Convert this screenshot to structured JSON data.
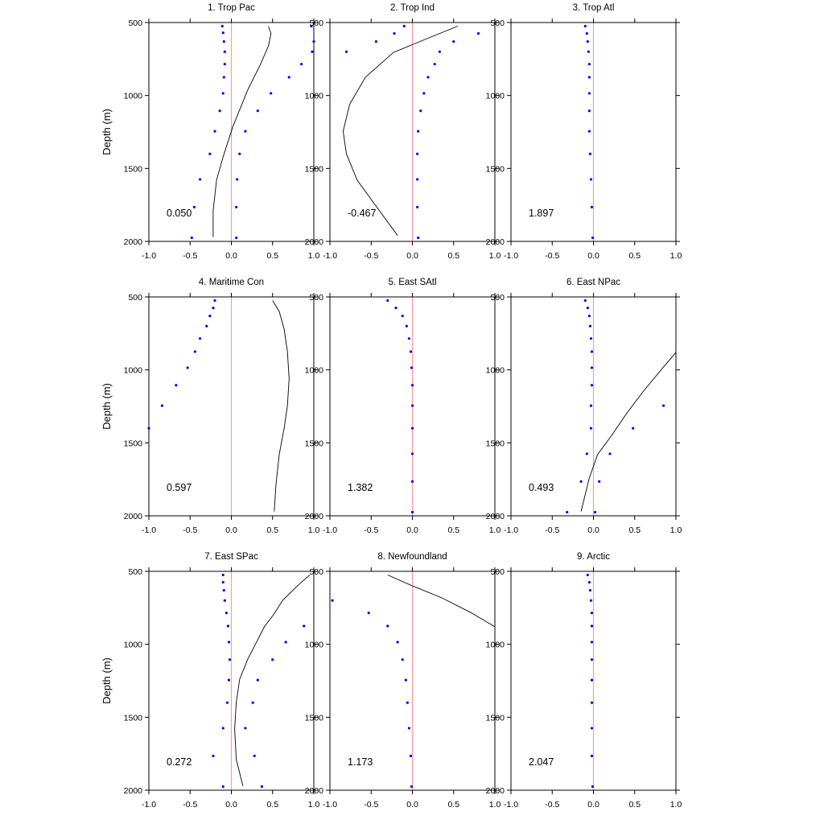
{
  "chart_data": {
    "type": "scatter",
    "ylabel": "Depth (m)",
    "xlim": [
      -1.0,
      1.0
    ],
    "ylim": [
      500,
      2000
    ],
    "y_inverted": true,
    "xticks": [
      "-1.0",
      "-0.5",
      "0.0",
      "0.5",
      "1.0"
    ],
    "yticks": [
      "500",
      "1000",
      "1500",
      "2000"
    ],
    "zero_line_color": "#ff9a9a",
    "dot_color": "#0000ff",
    "line_color": "#000000",
    "panels": [
      {
        "title": "1. Trop Pac",
        "value": "0.050",
        "dots_a": [
          [
            -0.11,
            525
          ],
          [
            -0.1,
            570
          ],
          [
            -0.09,
            630
          ],
          [
            -0.08,
            700
          ],
          [
            -0.08,
            785
          ],
          [
            -0.09,
            875
          ],
          [
            -0.1,
            985
          ],
          [
            -0.14,
            1105
          ],
          [
            -0.2,
            1245
          ],
          [
            -0.26,
            1400
          ],
          [
            -0.38,
            1575
          ],
          [
            -0.45,
            1765
          ],
          [
            -0.48,
            1975
          ]
        ],
        "dots_b": [
          [
            0.97,
            525
          ],
          [
            1.0,
            630
          ],
          [
            0.98,
            700
          ],
          [
            0.85,
            785
          ],
          [
            0.7,
            875
          ],
          [
            0.48,
            985
          ],
          [
            0.32,
            1105
          ],
          [
            0.17,
            1245
          ],
          [
            0.1,
            1400
          ],
          [
            0.07,
            1575
          ],
          [
            0.06,
            1765
          ],
          [
            0.06,
            1975
          ]
        ],
        "line": [
          [
            0.45,
            525
          ],
          [
            0.48,
            575
          ],
          [
            0.45,
            660
          ],
          [
            0.35,
            790
          ],
          [
            0.2,
            960
          ],
          [
            0.02,
            1210
          ],
          [
            -0.1,
            1420
          ],
          [
            -0.18,
            1580
          ],
          [
            -0.22,
            1790
          ],
          [
            -0.22,
            1970
          ]
        ]
      },
      {
        "title": "2. Trop Ind",
        "value": "-0.467",
        "dots_a": [
          [
            -0.1,
            525
          ],
          [
            -0.22,
            575
          ],
          [
            -0.44,
            630
          ],
          [
            -0.8,
            700
          ]
        ],
        "dots_b": [
          [
            0.8,
            575
          ],
          [
            0.5,
            630
          ],
          [
            0.33,
            700
          ],
          [
            0.27,
            785
          ],
          [
            0.19,
            875
          ],
          [
            0.14,
            985
          ],
          [
            0.1,
            1105
          ],
          [
            0.07,
            1245
          ],
          [
            0.06,
            1400
          ],
          [
            0.06,
            1575
          ],
          [
            0.06,
            1765
          ],
          [
            0.07,
            1975
          ]
        ],
        "line": [
          [
            0.55,
            525
          ],
          [
            0.2,
            605
          ],
          [
            -0.23,
            705
          ],
          [
            -0.57,
            875
          ],
          [
            -0.76,
            1060
          ],
          [
            -0.84,
            1245
          ],
          [
            -0.8,
            1400
          ],
          [
            -0.67,
            1580
          ],
          [
            -0.4,
            1790
          ],
          [
            -0.18,
            1960
          ]
        ]
      },
      {
        "title": "3. Trop Atl",
        "value": "1.897",
        "dots_a": [
          [
            -0.1,
            525
          ],
          [
            -0.08,
            575
          ],
          [
            -0.07,
            630
          ],
          [
            -0.06,
            700
          ],
          [
            -0.05,
            785
          ],
          [
            -0.05,
            875
          ],
          [
            -0.05,
            985
          ],
          [
            -0.05,
            1105
          ],
          [
            -0.05,
            1245
          ],
          [
            -0.04,
            1400
          ],
          [
            -0.03,
            1575
          ],
          [
            -0.02,
            1765
          ],
          [
            -0.01,
            1975
          ]
        ],
        "dots_b": [],
        "line": []
      },
      {
        "title": "4. Maritime Con",
        "value": "0.597",
        "dots_a": [
          [
            -0.2,
            525
          ],
          [
            -0.22,
            575
          ],
          [
            -0.26,
            630
          ],
          [
            -0.3,
            700
          ],
          [
            -0.38,
            785
          ],
          [
            -0.44,
            875
          ],
          [
            -0.53,
            985
          ],
          [
            -0.67,
            1105
          ],
          [
            -0.84,
            1245
          ],
          [
            -1.0,
            1400
          ]
        ],
        "dots_b": [],
        "line": [
          [
            0.5,
            525
          ],
          [
            0.58,
            600
          ],
          [
            0.64,
            720
          ],
          [
            0.68,
            875
          ],
          [
            0.7,
            1060
          ],
          [
            0.68,
            1245
          ],
          [
            0.64,
            1400
          ],
          [
            0.58,
            1580
          ],
          [
            0.54,
            1790
          ],
          [
            0.52,
            1970
          ]
        ]
      },
      {
        "title": "5. East SAtl",
        "value": "1.382",
        "dots_a": [
          [
            -0.3,
            525
          ],
          [
            -0.2,
            575
          ],
          [
            -0.12,
            630
          ],
          [
            -0.07,
            700
          ],
          [
            -0.04,
            785
          ],
          [
            -0.02,
            875
          ],
          [
            -0.01,
            985
          ],
          [
            0.0,
            1105
          ],
          [
            0.0,
            1245
          ],
          [
            0.0,
            1400
          ],
          [
            0.0,
            1575
          ],
          [
            0.0,
            1765
          ],
          [
            0.0,
            1975
          ]
        ],
        "dots_b": [],
        "line": []
      },
      {
        "title": "6. East NPac",
        "value": "0.493",
        "dots_a": [
          [
            -0.1,
            525
          ],
          [
            -0.07,
            575
          ],
          [
            -0.05,
            630
          ],
          [
            -0.04,
            700
          ],
          [
            -0.03,
            785
          ],
          [
            -0.02,
            875
          ],
          [
            -0.02,
            985
          ],
          [
            -0.02,
            1105
          ],
          [
            -0.03,
            1245
          ],
          [
            -0.03,
            1400
          ],
          [
            -0.08,
            1575
          ],
          [
            -0.15,
            1765
          ],
          [
            -0.32,
            1975
          ]
        ],
        "dots_b": [
          [
            0.85,
            1245
          ],
          [
            0.48,
            1400
          ],
          [
            0.2,
            1575
          ],
          [
            0.07,
            1765
          ],
          [
            0.02,
            1975
          ]
        ],
        "line": [
          [
            1.0,
            880
          ],
          [
            0.82,
            1000
          ],
          [
            0.6,
            1150
          ],
          [
            0.4,
            1300
          ],
          [
            0.22,
            1450
          ],
          [
            0.05,
            1580
          ],
          [
            -0.05,
            1740
          ],
          [
            -0.15,
            1970
          ]
        ]
      },
      {
        "title": "7. East SPac",
        "value": "0.272",
        "dots_a": [
          [
            -0.1,
            525
          ],
          [
            -0.1,
            575
          ],
          [
            -0.09,
            630
          ],
          [
            -0.08,
            700
          ],
          [
            -0.06,
            785
          ],
          [
            -0.04,
            875
          ],
          [
            -0.03,
            985
          ],
          [
            -0.02,
            1105
          ],
          [
            -0.03,
            1245
          ],
          [
            -0.05,
            1400
          ],
          [
            -0.1,
            1575
          ],
          [
            -0.22,
            1765
          ],
          [
            -0.1,
            1975
          ]
        ],
        "dots_b": [
          [
            0.88,
            875
          ],
          [
            0.66,
            985
          ],
          [
            0.5,
            1105
          ],
          [
            0.32,
            1245
          ],
          [
            0.26,
            1400
          ],
          [
            0.17,
            1575
          ],
          [
            0.28,
            1765
          ],
          [
            0.37,
            1975
          ]
        ],
        "line": [
          [
            0.95,
            525
          ],
          [
            0.8,
            600
          ],
          [
            0.62,
            700
          ],
          [
            0.52,
            790
          ],
          [
            0.4,
            880
          ],
          [
            0.3,
            990
          ],
          [
            0.2,
            1100
          ],
          [
            0.1,
            1240
          ],
          [
            0.06,
            1400
          ],
          [
            0.04,
            1580
          ],
          [
            0.06,
            1790
          ],
          [
            0.14,
            1970
          ]
        ]
      },
      {
        "title": "8. Newfoundland",
        "value": "1.173",
        "dots_a": [
          [
            -0.97,
            700
          ],
          [
            -0.53,
            785
          ],
          [
            -0.3,
            875
          ],
          [
            -0.18,
            985
          ],
          [
            -0.12,
            1105
          ],
          [
            -0.08,
            1245
          ],
          [
            -0.06,
            1400
          ],
          [
            -0.04,
            1575
          ],
          [
            -0.02,
            1765
          ],
          [
            -0.01,
            1975
          ]
        ],
        "dots_b": [],
        "line": [
          [
            -0.3,
            525
          ],
          [
            0.0,
            600
          ],
          [
            0.35,
            680
          ],
          [
            0.7,
            780
          ],
          [
            1.0,
            880
          ]
        ]
      },
      {
        "title": "9. Arctic",
        "value": "2.047",
        "dots_a": [
          [
            -0.07,
            525
          ],
          [
            -0.05,
            575
          ],
          [
            -0.04,
            630
          ],
          [
            -0.03,
            700
          ],
          [
            -0.02,
            785
          ],
          [
            -0.02,
            875
          ],
          [
            -0.02,
            985
          ],
          [
            -0.02,
            1105
          ],
          [
            -0.02,
            1245
          ],
          [
            -0.02,
            1400
          ],
          [
            -0.02,
            1575
          ],
          [
            -0.02,
            1765
          ],
          [
            -0.01,
            1975
          ]
        ],
        "dots_b": [],
        "line": []
      }
    ]
  }
}
